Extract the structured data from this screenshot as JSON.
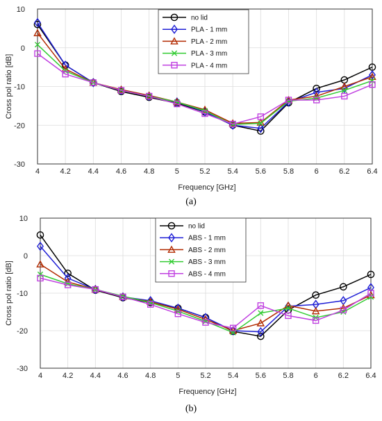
{
  "captions": [
    "(a)",
    "(b)"
  ],
  "chart_data": [
    {
      "type": "line",
      "xlabel": "Frequency [GHz]",
      "ylabel": "Cross pol ratio [dB]",
      "xlim": [
        4,
        6.4
      ],
      "ylim": [
        -30,
        10
      ],
      "x": [
        4,
        4.2,
        4.4,
        4.6,
        4.8,
        5,
        5.2,
        5.4,
        5.6,
        5.8,
        6,
        6.2,
        6.4
      ],
      "xticks": [
        "4",
        "4.2",
        "4.4",
        "4.6",
        "4.8",
        "5",
        "5.2",
        "5.4",
        "5.6",
        "5.8",
        "6",
        "6.2",
        "6.4"
      ],
      "yticks": [
        10,
        0,
        -10,
        -20,
        -30
      ],
      "grid": true,
      "legend_position": "top-center",
      "series": [
        {
          "name": "no lid",
          "color": "#000000",
          "marker": "circle",
          "values": [
            6.0,
            -4.5,
            -9.0,
            -11.3,
            -12.8,
            -14.3,
            -16.6,
            -20.0,
            -21.5,
            -14.2,
            -10.5,
            -8.3,
            -5.0
          ]
        },
        {
          "name": "PLA - 1 mm",
          "color": "#1f1fd6",
          "marker": "diamond",
          "values": [
            6.5,
            -4.5,
            -9.0,
            -11.0,
            -12.5,
            -14.0,
            -16.5,
            -20.0,
            -20.8,
            -14.0,
            -11.5,
            -10.5,
            -7.0
          ]
        },
        {
          "name": "PLA - 2 mm",
          "color": "#b22a00",
          "marker": "triangle",
          "values": [
            3.8,
            -5.5,
            -9.0,
            -10.8,
            -12.3,
            -14.0,
            -16.0,
            -19.5,
            -19.3,
            -13.5,
            -12.5,
            -10.0,
            -7.5
          ]
        },
        {
          "name": "PLA - 3 mm",
          "color": "#33cc33",
          "marker": "x",
          "values": [
            0.8,
            -6.0,
            -9.0,
            -11.0,
            -12.5,
            -14.0,
            -16.3,
            -19.8,
            -19.5,
            -13.8,
            -13.0,
            -11.0,
            -8.5
          ]
        },
        {
          "name": "PLA - 4 mm",
          "color": "#c040e0",
          "marker": "square",
          "values": [
            -1.5,
            -6.8,
            -9.0,
            -11.0,
            -12.5,
            -14.5,
            -17.0,
            -19.7,
            -17.8,
            -13.5,
            -13.5,
            -12.5,
            -9.5
          ]
        }
      ]
    },
    {
      "type": "line",
      "xlabel": "Frequency [GHz]",
      "ylabel": "Cross pol ratio [dB]",
      "xlim": [
        4,
        6.4
      ],
      "ylim": [
        -30,
        10
      ],
      "x": [
        4,
        4.2,
        4.4,
        4.6,
        4.8,
        5,
        5.2,
        5.4,
        5.6,
        5.8,
        6,
        6.2,
        6.4
      ],
      "xticks": [
        "4",
        "4.2",
        "4.4",
        "4.6",
        "4.8",
        "5",
        "5.2",
        "5.4",
        "5.6",
        "5.8",
        "6",
        "6.2",
        "6.4"
      ],
      "yticks": [
        10,
        0,
        -10,
        -20,
        -30
      ],
      "grid": true,
      "legend_position": "top-center",
      "series": [
        {
          "name": "no lid",
          "color": "#000000",
          "marker": "circle",
          "values": [
            5.5,
            -4.7,
            -9.2,
            -11.2,
            -12.5,
            -14.0,
            -16.5,
            -20.2,
            -21.5,
            -14.5,
            -10.5,
            -8.3,
            -5.0
          ]
        },
        {
          "name": "ABS - 1 mm",
          "color": "#1f1fd6",
          "marker": "diamond",
          "values": [
            2.5,
            -6.0,
            -9.0,
            -11.0,
            -12.0,
            -14.0,
            -16.5,
            -20.0,
            -20.3,
            -13.5,
            -13.0,
            -12.0,
            -8.5
          ]
        },
        {
          "name": "ABS - 2 mm",
          "color": "#b22a00",
          "marker": "triangle",
          "values": [
            -2.3,
            -7.0,
            -9.0,
            -11.0,
            -12.3,
            -14.3,
            -17.0,
            -20.0,
            -18.0,
            -13.3,
            -14.8,
            -14.0,
            -10.5
          ]
        },
        {
          "name": "ABS - 3 mm",
          "color": "#33cc33",
          "marker": "x",
          "values": [
            -5.0,
            -7.5,
            -9.0,
            -10.8,
            -12.5,
            -14.8,
            -17.5,
            -20.5,
            -15.3,
            -14.0,
            -16.5,
            -15.0,
            -11.0
          ]
        },
        {
          "name": "ABS - 4 mm",
          "color": "#c040e0",
          "marker": "square",
          "values": [
            -6.0,
            -7.8,
            -9.0,
            -11.0,
            -13.0,
            -15.5,
            -17.8,
            -19.3,
            -13.3,
            -16.0,
            -17.3,
            -14.5,
            -10.0
          ]
        }
      ]
    }
  ]
}
